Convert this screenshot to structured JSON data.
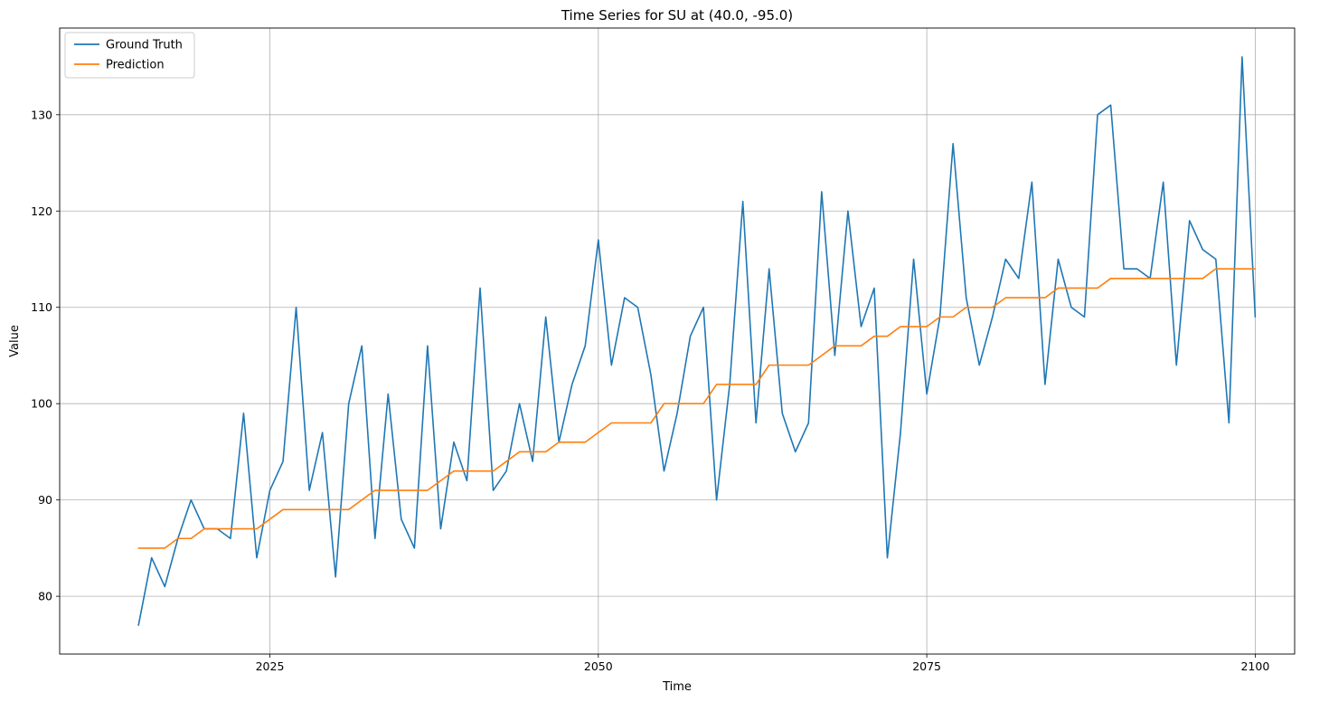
{
  "chart_data": {
    "type": "line",
    "title": "Time Series for SU at (40.0, -95.0)",
    "xlabel": "Time",
    "ylabel": "Value",
    "xlim": [
      2009.0,
      2103.0
    ],
    "ylim": [
      74.0,
      139.0
    ],
    "x_ticks": [
      2025,
      2050,
      2075,
      2100
    ],
    "y_ticks": [
      80,
      90,
      100,
      110,
      120,
      130
    ],
    "grid": true,
    "legend_position": "top-left",
    "x": [
      2015,
      2016,
      2017,
      2018,
      2019,
      2020,
      2021,
      2022,
      2023,
      2024,
      2025,
      2026,
      2027,
      2028,
      2029,
      2030,
      2031,
      2032,
      2033,
      2034,
      2035,
      2036,
      2037,
      2038,
      2039,
      2040,
      2041,
      2042,
      2043,
      2044,
      2045,
      2046,
      2047,
      2048,
      2049,
      2050,
      2051,
      2052,
      2053,
      2054,
      2055,
      2056,
      2057,
      2058,
      2059,
      2060,
      2061,
      2062,
      2063,
      2064,
      2065,
      2066,
      2067,
      2068,
      2069,
      2070,
      2071,
      2072,
      2073,
      2074,
      2075,
      2076,
      2077,
      2078,
      2079,
      2080,
      2081,
      2082,
      2083,
      2084,
      2085,
      2086,
      2087,
      2088,
      2089,
      2090,
      2091,
      2092,
      2093,
      2094,
      2095,
      2096,
      2097,
      2098,
      2099,
      2100
    ],
    "series": [
      {
        "name": "Ground Truth",
        "color": "#1f77b4",
        "values": [
          77,
          84,
          81,
          86,
          90,
          87,
          87,
          86,
          99,
          84,
          91,
          94,
          110,
          91,
          97,
          82,
          100,
          106,
          86,
          101,
          88,
          85,
          106,
          87,
          96,
          92,
          112,
          91,
          93,
          100,
          94,
          109,
          96,
          102,
          106,
          117,
          104,
          111,
          110,
          103,
          93,
          99,
          107,
          110,
          90,
          102,
          121,
          98,
          114,
          99,
          95,
          98,
          122,
          105,
          120,
          108,
          112,
          84,
          97,
          115,
          101,
          109,
          127,
          111,
          104,
          109,
          115,
          113,
          123,
          102,
          115,
          110,
          109,
          130,
          131,
          114,
          114,
          113,
          123,
          104,
          119,
          116,
          115,
          98,
          136,
          109
        ]
      },
      {
        "name": "Prediction",
        "color": "#ff7f0e",
        "values": [
          85,
          85,
          85,
          86,
          86,
          87,
          87,
          87,
          87,
          87,
          88,
          89,
          89,
          89,
          89,
          89,
          89,
          90,
          91,
          91,
          91,
          91,
          91,
          92,
          93,
          93,
          93,
          93,
          94,
          95,
          95,
          95,
          96,
          96,
          96,
          97,
          98,
          98,
          98,
          98,
          100,
          100,
          100,
          100,
          102,
          102,
          102,
          102,
          104,
          104,
          104,
          104,
          105,
          106,
          106,
          106,
          107,
          107,
          108,
          108,
          108,
          109,
          109,
          110,
          110,
          110,
          111,
          111,
          111,
          111,
          112,
          112,
          112,
          112,
          113,
          113,
          113,
          113,
          113,
          113,
          113,
          113,
          114,
          114,
          114,
          114
        ]
      }
    ]
  }
}
